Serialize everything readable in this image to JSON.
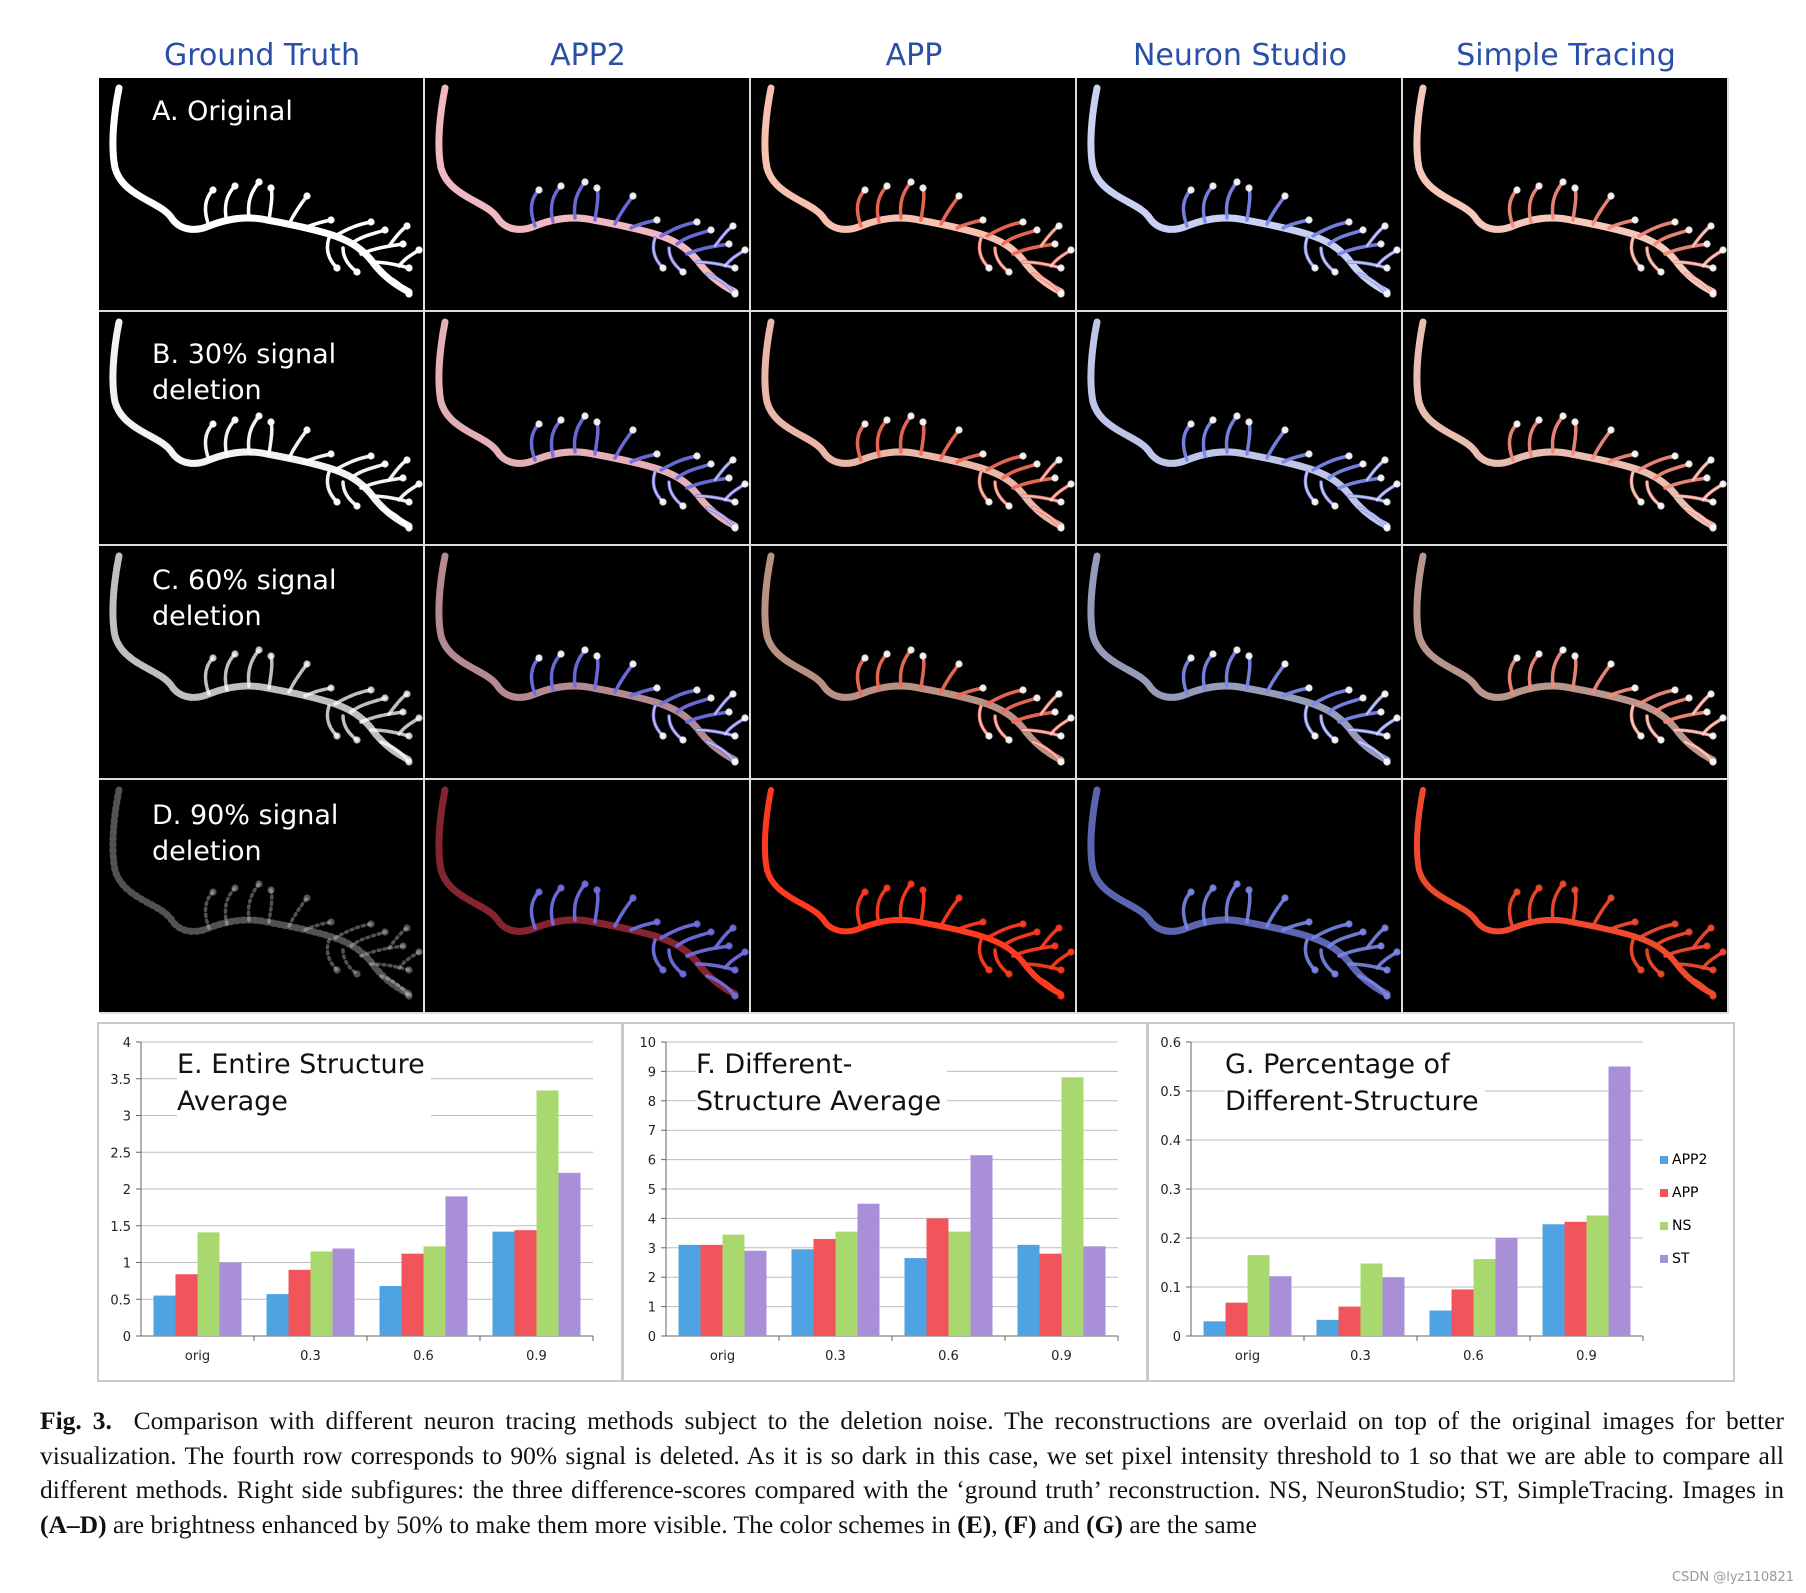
{
  "columns": [
    "Ground Truth",
    "APP2",
    "APP",
    "Neuron Studio",
    "Simple Tracing"
  ],
  "rows": [
    "A. Original",
    "B. 30% signal\ndeletion",
    "C. 60% signal\ndeletion",
    "D. 90% signal\ndeletion"
  ],
  "overlay_colors": {
    "ground_truth": "#ffffff",
    "app2": "#6f6fe0",
    "app": "#f06a58",
    "ns": "#7a86e8",
    "st": "#f08a7a",
    "app_d": "#ff3a1e",
    "st_d": "#f04a2e",
    "app2_d": "#b03040"
  },
  "chart_data": [
    {
      "type": "bar",
      "title": "E. Entire Structure\nAverage",
      "categories": [
        "orig",
        "0.3",
        "0.6",
        "0.9"
      ],
      "ylim": [
        0,
        4
      ],
      "yticks": [
        "0",
        "0.5",
        "1",
        "1.5",
        "2",
        "2.5",
        "3",
        "3.5",
        "4"
      ],
      "series": [
        {
          "name": "APP2",
          "values": [
            0.55,
            0.57,
            0.68,
            1.42
          ]
        },
        {
          "name": "APP",
          "values": [
            0.84,
            0.9,
            1.12,
            1.44
          ]
        },
        {
          "name": "NS",
          "values": [
            1.41,
            1.15,
            1.22,
            3.34
          ]
        },
        {
          "name": "ST",
          "values": [
            1.0,
            1.19,
            1.9,
            2.22
          ]
        }
      ]
    },
    {
      "type": "bar",
      "title": "F. Different-\nStructure Average",
      "categories": [
        "orig",
        "0.3",
        "0.6",
        "0.9"
      ],
      "ylim": [
        0,
        10
      ],
      "yticks": [
        "0",
        "1",
        "2",
        "3",
        "4",
        "5",
        "6",
        "7",
        "8",
        "9",
        "10"
      ],
      "series": [
        {
          "name": "APP2",
          "values": [
            3.1,
            2.95,
            2.65,
            3.1
          ]
        },
        {
          "name": "APP",
          "values": [
            3.1,
            3.3,
            4.0,
            2.8
          ]
        },
        {
          "name": "NS",
          "values": [
            3.45,
            3.55,
            3.55,
            8.8
          ]
        },
        {
          "name": "ST",
          "values": [
            2.9,
            4.5,
            6.15,
            3.05
          ]
        }
      ]
    },
    {
      "type": "bar",
      "title": "G. Percentage of\nDifferent-Structure",
      "categories": [
        "orig",
        "0.3",
        "0.6",
        "0.9"
      ],
      "ylim": [
        0,
        0.6
      ],
      "yticks": [
        "0",
        "0.1",
        "0.2",
        "0.3",
        "0.4",
        "0.5",
        "0.6"
      ],
      "series": [
        {
          "name": "APP2",
          "values": [
            0.03,
            0.033,
            0.052,
            0.228
          ]
        },
        {
          "name": "APP",
          "values": [
            0.068,
            0.06,
            0.095,
            0.233
          ]
        },
        {
          "name": "NS",
          "values": [
            0.165,
            0.148,
            0.157,
            0.246
          ]
        },
        {
          "name": "ST",
          "values": [
            0.122,
            0.12,
            0.2,
            0.55
          ]
        }
      ]
    }
  ],
  "legend": [
    {
      "name": "APP2",
      "color": "#4fa3e3"
    },
    {
      "name": "APP",
      "color": "#f2545b"
    },
    {
      "name": "NS",
      "color": "#a8d86e"
    },
    {
      "name": "ST",
      "color": "#a88fd8"
    }
  ],
  "caption": {
    "label": "Fig. 3.",
    "text_1": "Comparison with different neuron tracing methods subject to the deletion noise. The reconstructions are overlaid on top of the original images for better visualization. The fourth row corresponds to 90% signal is deleted. As it is so dark in this case, we set pixel intensity threshold to 1 so that we are able to compare all different methods. Right side subfigures: the three difference-scores compared with the ‘ground truth’ reconstruction. NS, NeuronStudio; ST, SimpleTracing. Images in ",
    "ref_ad": "(A–D)",
    "text_2": " are brightness enhanced by 50% to make them more visible. The color schemes in ",
    "ref_e": "(E)",
    "text_3": ", ",
    "ref_f": "(F)",
    "text_4": " and ",
    "ref_g": "(G)",
    "text_5": " are the same"
  },
  "watermark": "CSDN @lyz110821"
}
